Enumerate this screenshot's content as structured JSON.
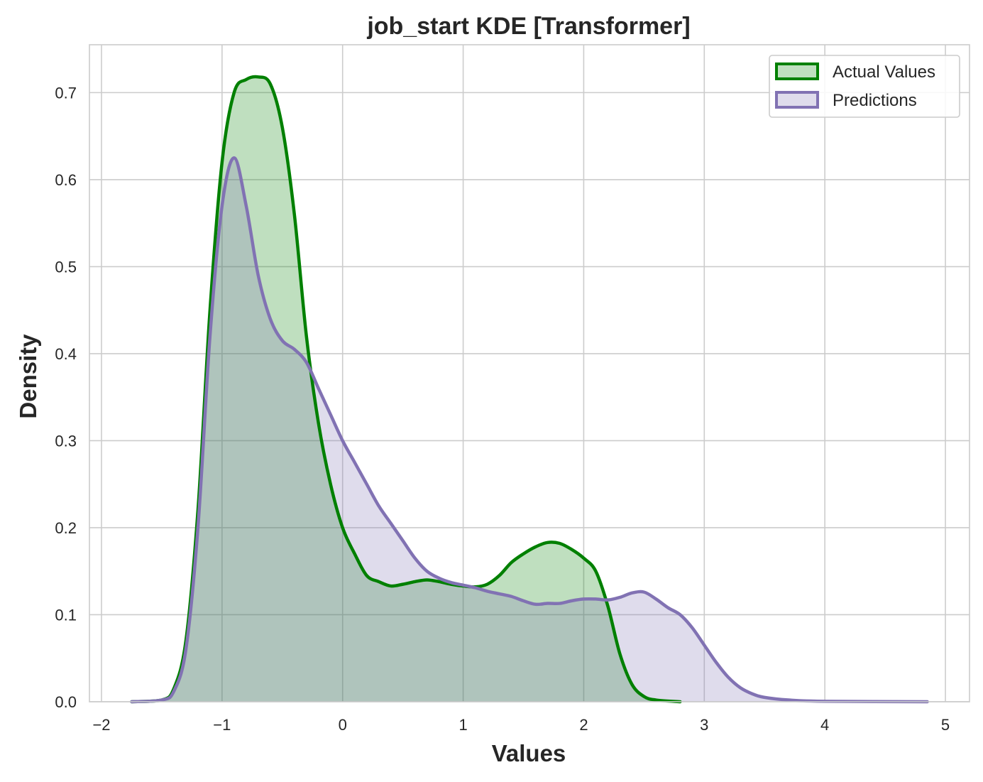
{
  "chart_data": {
    "type": "area",
    "title": "job_start KDE [Transformer]",
    "xlabel": "Values",
    "ylabel": "Density",
    "xlim": [
      -2.1,
      5.2
    ],
    "ylim": [
      0,
      0.755
    ],
    "xticks": [
      -2,
      -1,
      0,
      1,
      2,
      3,
      4,
      5
    ],
    "xtick_labels": [
      "−2",
      "−1",
      "0",
      "1",
      "2",
      "3",
      "4",
      "5"
    ],
    "yticks": [
      0.0,
      0.1,
      0.2,
      0.3,
      0.4,
      0.5,
      0.6,
      0.7
    ],
    "ytick_labels": [
      "0.0",
      "0.1",
      "0.2",
      "0.3",
      "0.4",
      "0.5",
      "0.6",
      "0.7"
    ],
    "grid": true,
    "legend_position": "top-right",
    "series": [
      {
        "name": "Actual Values",
        "color": "#008000",
        "fill_color": "#008000",
        "fill_opacity": 0.25,
        "x": [
          -1.75,
          -1.5,
          -1.4,
          -1.3,
          -1.2,
          -1.1,
          -1.0,
          -0.9,
          -0.8,
          -0.7,
          -0.6,
          -0.5,
          -0.4,
          -0.3,
          -0.2,
          -0.1,
          0.0,
          0.1,
          0.2,
          0.3,
          0.4,
          0.5,
          0.6,
          0.7,
          0.8,
          0.9,
          1.0,
          1.1,
          1.2,
          1.3,
          1.4,
          1.5,
          1.6,
          1.7,
          1.8,
          1.9,
          2.0,
          2.1,
          2.2,
          2.3,
          2.4,
          2.5,
          2.6,
          2.8
        ],
        "y": [
          0.0,
          0.002,
          0.015,
          0.07,
          0.22,
          0.45,
          0.62,
          0.7,
          0.715,
          0.718,
          0.71,
          0.66,
          0.56,
          0.42,
          0.32,
          0.25,
          0.2,
          0.17,
          0.145,
          0.138,
          0.133,
          0.135,
          0.138,
          0.14,
          0.138,
          0.135,
          0.133,
          0.132,
          0.135,
          0.145,
          0.16,
          0.17,
          0.178,
          0.183,
          0.182,
          0.175,
          0.165,
          0.15,
          0.11,
          0.055,
          0.02,
          0.006,
          0.002,
          0.0
        ]
      },
      {
        "name": "Predictions",
        "color": "#8172b3",
        "fill_color": "#8172b3",
        "fill_opacity": 0.25,
        "x": [
          -1.75,
          -1.5,
          -1.4,
          -1.3,
          -1.2,
          -1.1,
          -1.0,
          -0.9,
          -0.8,
          -0.7,
          -0.6,
          -0.5,
          -0.4,
          -0.3,
          -0.2,
          -0.1,
          0.0,
          0.1,
          0.2,
          0.3,
          0.4,
          0.5,
          0.6,
          0.7,
          0.8,
          0.9,
          1.0,
          1.1,
          1.2,
          1.3,
          1.4,
          1.5,
          1.6,
          1.7,
          1.8,
          1.9,
          2.0,
          2.1,
          2.2,
          2.3,
          2.4,
          2.5,
          2.6,
          2.7,
          2.8,
          2.9,
          3.0,
          3.1,
          3.2,
          3.3,
          3.4,
          3.5,
          3.7,
          4.0,
          4.85
        ],
        "y": [
          0.0,
          0.002,
          0.012,
          0.06,
          0.2,
          0.42,
          0.57,
          0.625,
          0.57,
          0.49,
          0.44,
          0.415,
          0.405,
          0.39,
          0.36,
          0.33,
          0.3,
          0.275,
          0.25,
          0.225,
          0.205,
          0.185,
          0.165,
          0.15,
          0.142,
          0.137,
          0.134,
          0.131,
          0.127,
          0.124,
          0.121,
          0.116,
          0.112,
          0.113,
          0.113,
          0.116,
          0.118,
          0.118,
          0.117,
          0.12,
          0.125,
          0.126,
          0.118,
          0.108,
          0.1,
          0.085,
          0.065,
          0.045,
          0.028,
          0.016,
          0.009,
          0.005,
          0.002,
          0.0005,
          0.0
        ]
      }
    ]
  }
}
